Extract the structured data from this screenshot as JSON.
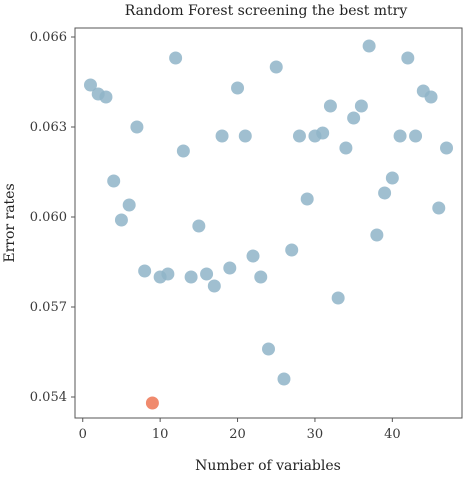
{
  "chart_data": {
    "type": "scatter",
    "title": "Random Forest screening the best mtry",
    "xlabel": "Number of variables",
    "ylabel": "Error rates",
    "xlim": [
      -1,
      49
    ],
    "ylim": [
      0.0533,
      0.0663
    ],
    "xticks": [
      0,
      10,
      20,
      30,
      40
    ],
    "yticks": [
      0.054,
      0.057,
      0.06,
      0.063,
      0.066
    ],
    "ytick_labels": [
      "0.054",
      "0.057",
      "0.060",
      "0.063",
      "0.066"
    ],
    "grid": false,
    "colors": {
      "series": "#8fb4c8",
      "best": "#ef8465",
      "frame": "#555555"
    },
    "series": [
      {
        "x": [
          1,
          2,
          3,
          4,
          5,
          6,
          7,
          8,
          10,
          11,
          12,
          13,
          14,
          15,
          16,
          17,
          18,
          19,
          20,
          21,
          22,
          23,
          24,
          25,
          26,
          27,
          28,
          29,
          30,
          31,
          32,
          33,
          34,
          35,
          36,
          37,
          38,
          39,
          40,
          41,
          42,
          43,
          44,
          45,
          46,
          47
        ],
        "y": [
          0.0644,
          0.0641,
          0.064,
          0.0612,
          0.0599,
          0.0604,
          0.063,
          0.0582,
          0.058,
          0.0581,
          0.0653,
          0.0622,
          0.058,
          0.0597,
          0.0581,
          0.0577,
          0.0627,
          0.0583,
          0.0643,
          0.0627,
          0.0587,
          0.058,
          0.0556,
          0.065,
          0.0546,
          0.0589,
          0.0627,
          0.0606,
          0.0627,
          0.0628,
          0.0637,
          0.0573,
          0.0623,
          0.0633,
          0.0637,
          0.0657,
          0.0594,
          0.0608,
          0.0613,
          0.0627,
          0.0653,
          0.0627,
          0.0642,
          0.064,
          0.0603,
          0.0623
        ]
      },
      {
        "x": [
          9
        ],
        "y": [
          0.0538
        ],
        "highlight": true
      }
    ]
  }
}
